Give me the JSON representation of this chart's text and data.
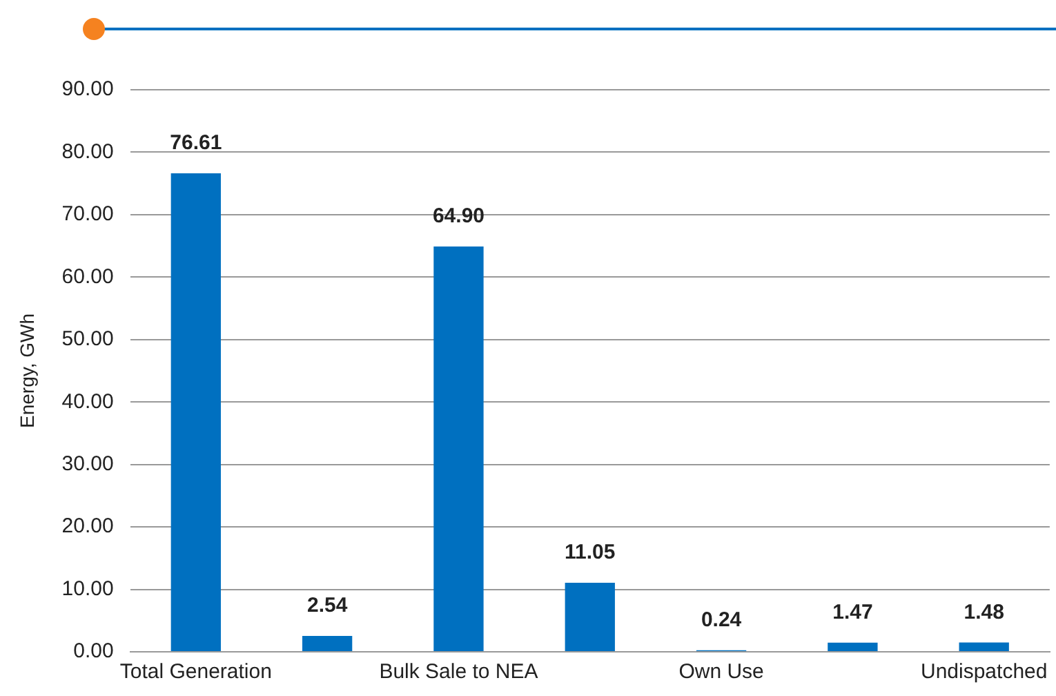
{
  "chart_data": {
    "type": "bar",
    "ylabel": "Energy, GWh",
    "categories": [
      "Total Generation",
      null,
      "Bulk Sale to NEA",
      null,
      "Own Use",
      null,
      "Undispatched"
    ],
    "values": [
      76.61,
      2.54,
      64.9,
      11.05,
      0.24,
      1.47,
      1.48
    ],
    "value_labels": [
      "76.61",
      "2.54",
      "64.90",
      "11.05",
      "0.24",
      "1.47",
      "1.48"
    ],
    "color": "#0070c0",
    "ylim": [
      0,
      90
    ],
    "yticks": [
      {
        "value": 0,
        "label": "0.00"
      },
      {
        "value": 10,
        "label": "10.00"
      },
      {
        "value": 20,
        "label": "20.00"
      },
      {
        "value": 30,
        "label": "30.00"
      },
      {
        "value": 40,
        "label": "40.00"
      },
      {
        "value": 50,
        "label": "50.00"
      },
      {
        "value": 60,
        "label": "60.00"
      },
      {
        "value": 70,
        "label": "70.00"
      },
      {
        "value": 80,
        "label": "80.00"
      },
      {
        "value": 90,
        "label": "90.00"
      }
    ],
    "grid": "y"
  }
}
